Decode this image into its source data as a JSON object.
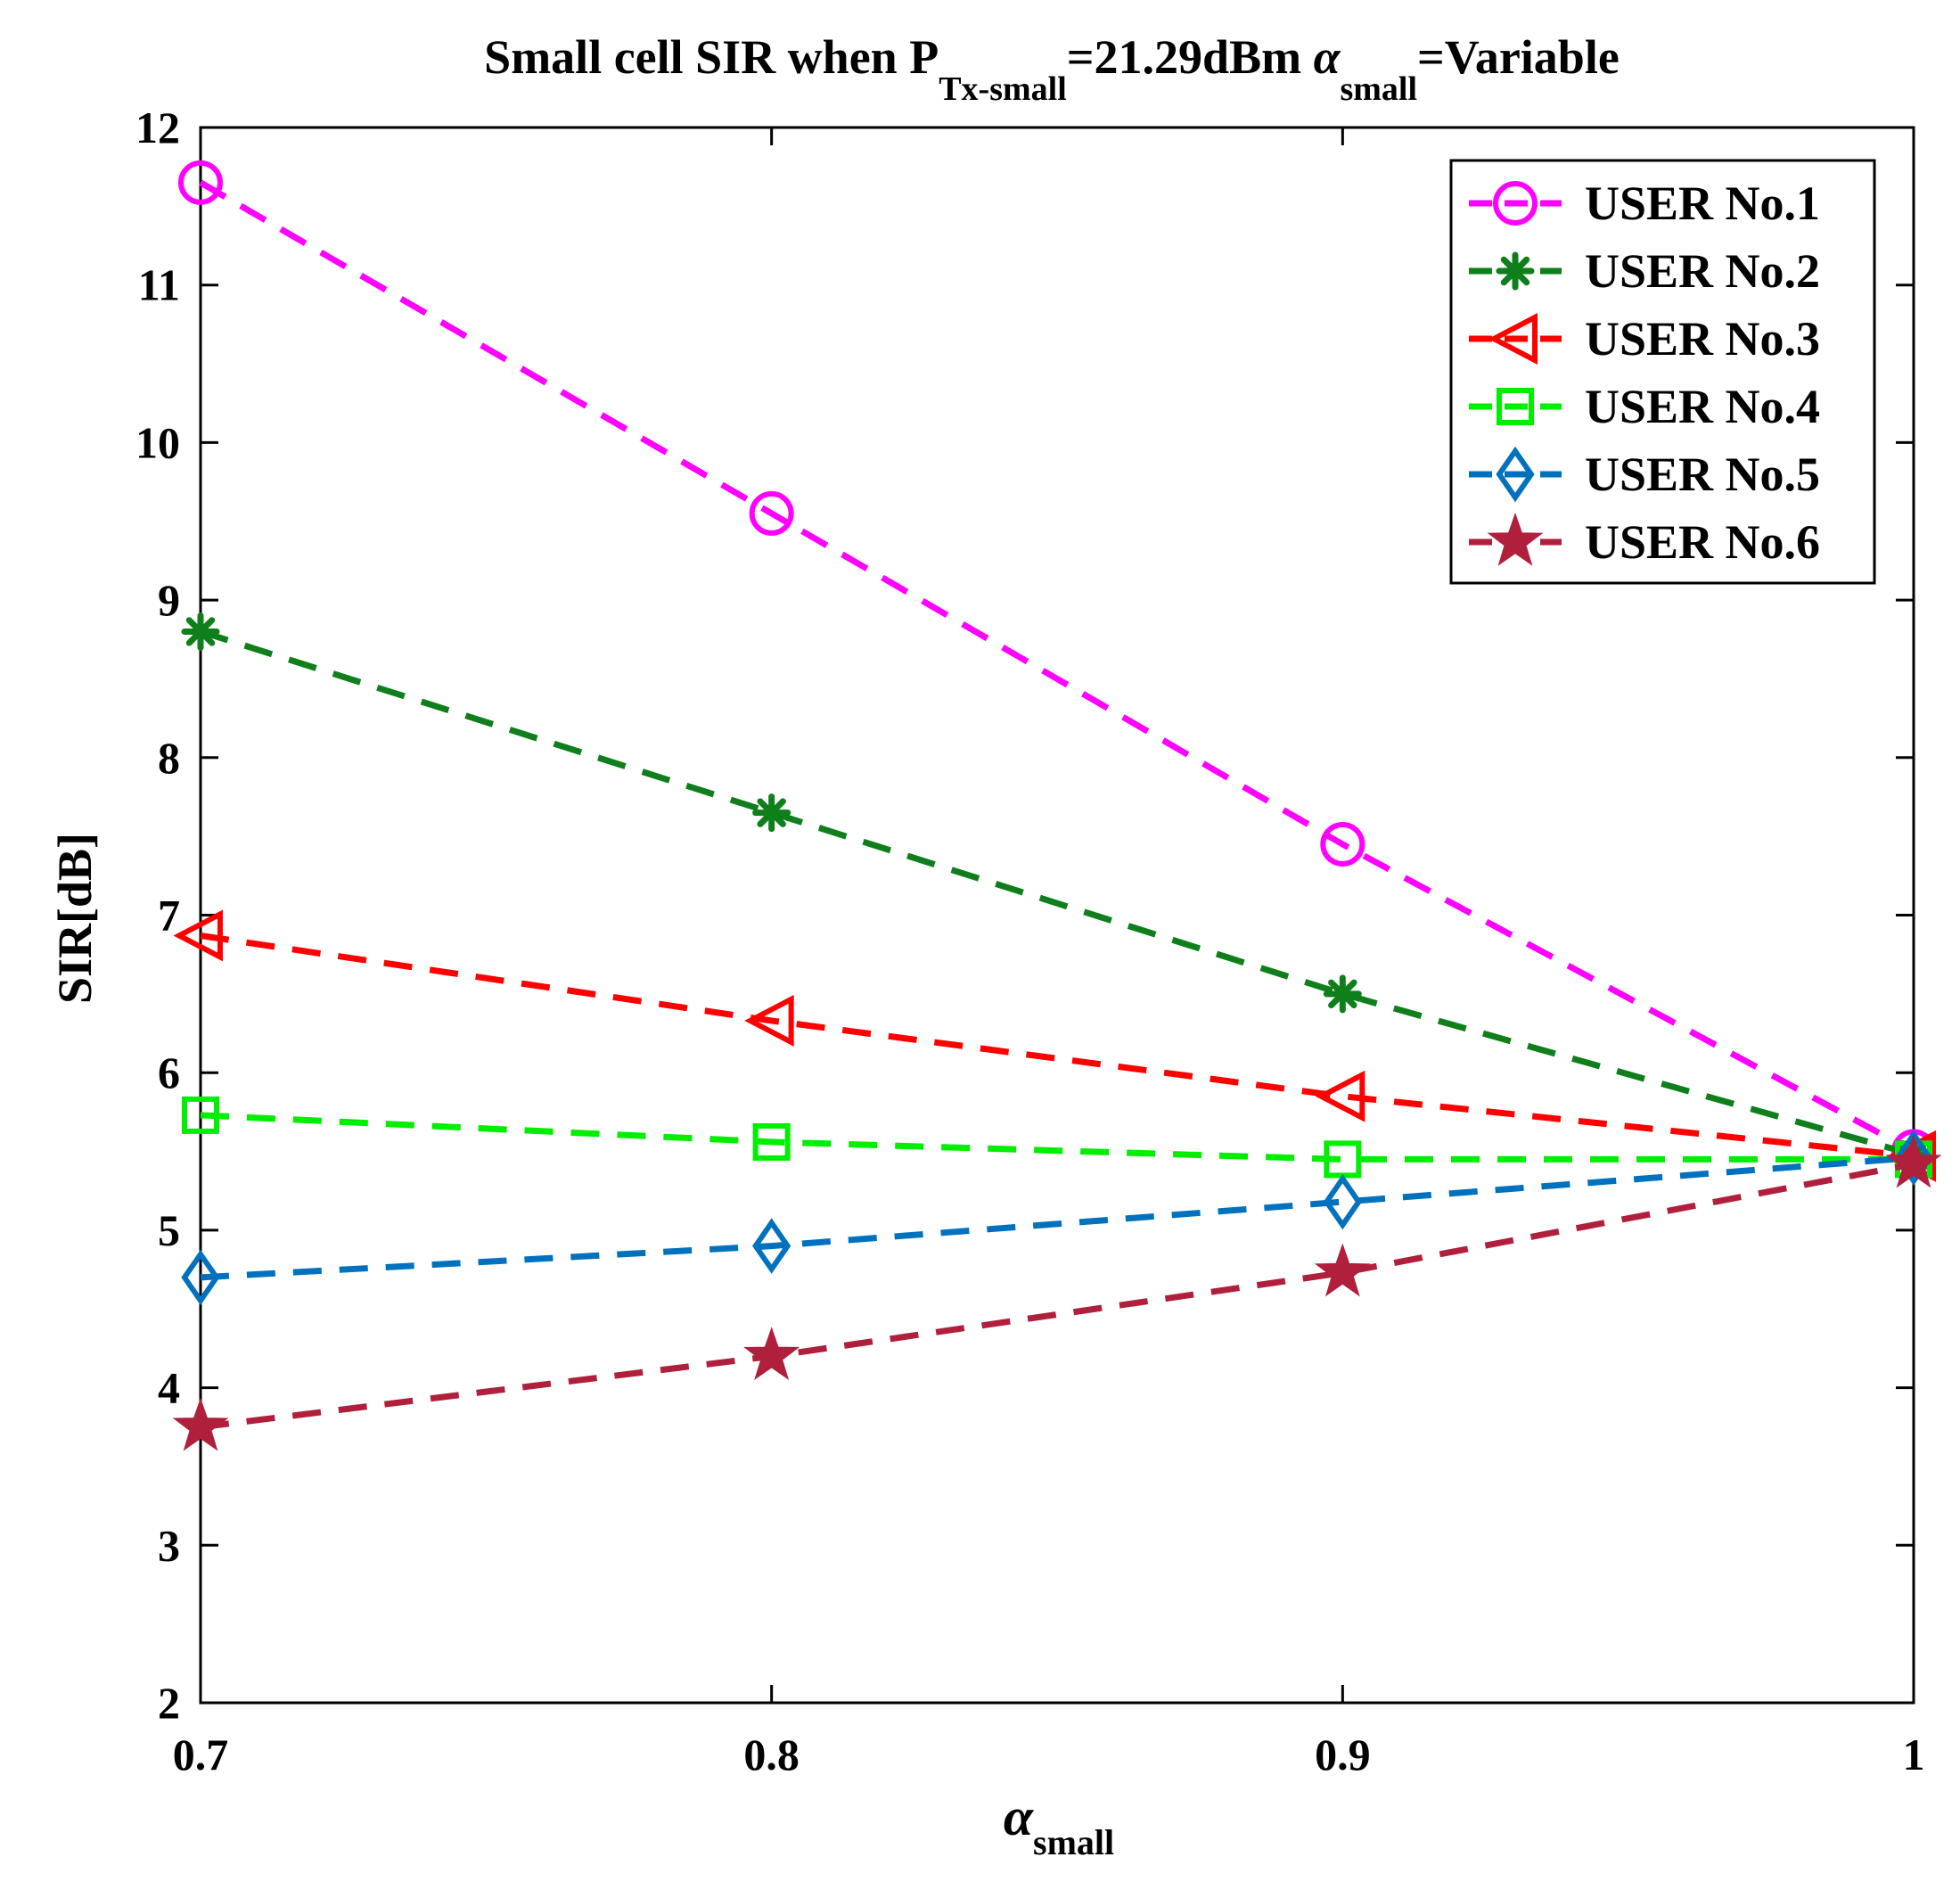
{
  "chart_data": {
    "type": "line",
    "title": {
      "prefix": "Small cell  SIR  when P",
      "sub1": "Tx-small",
      "mid": "=21.29dBm ",
      "alpha": "α",
      "sub2": "small",
      "suffix": "=Variable"
    },
    "xlabel": {
      "main": "α",
      "sub": "small"
    },
    "ylabel": "SIR[dB]",
    "xlim": [
      0.7,
      1.0
    ],
    "ylim": [
      2,
      12
    ],
    "x": [
      0.7,
      0.8,
      0.9,
      1.0
    ],
    "x_ticks": [
      {
        "value": 0.7,
        "label": "0.7"
      },
      {
        "value": 0.8,
        "label": "0.8"
      },
      {
        "value": 0.9,
        "label": "0.9"
      },
      {
        "value": 1.0,
        "label": "1"
      }
    ],
    "y_ticks": [
      {
        "value": 2,
        "label": "2"
      },
      {
        "value": 3,
        "label": "3"
      },
      {
        "value": 4,
        "label": "4"
      },
      {
        "value": 5,
        "label": "5"
      },
      {
        "value": 6,
        "label": "6"
      },
      {
        "value": 7,
        "label": "7"
      },
      {
        "value": 8,
        "label": "8"
      },
      {
        "value": 9,
        "label": "9"
      },
      {
        "value": 10,
        "label": "10"
      },
      {
        "value": 11,
        "label": "11"
      },
      {
        "value": 12,
        "label": "12"
      }
    ],
    "grid": false,
    "legend_position": "top-right",
    "series": [
      {
        "name": "USER No.1",
        "values": [
          11.65,
          9.55,
          7.45,
          5.5
        ],
        "color": "#ff00ff",
        "marker": "circle"
      },
      {
        "name": "USER No.2",
        "values": [
          8.8,
          7.65,
          6.5,
          5.48
        ],
        "color": "#0e7f1a",
        "marker": "asterisk"
      },
      {
        "name": "USER No.3",
        "values": [
          6.87,
          6.33,
          5.85,
          5.47
        ],
        "color": "#ff0000",
        "marker": "triangle-left"
      },
      {
        "name": "USER No.4",
        "values": [
          5.73,
          5.56,
          5.45,
          5.45
        ],
        "color": "#00ee00",
        "marker": "square"
      },
      {
        "name": "USER No.5",
        "values": [
          4.7,
          4.9,
          5.18,
          5.46
        ],
        "color": "#0072bd",
        "marker": "diamond"
      },
      {
        "name": "USER No.6",
        "values": [
          3.75,
          4.2,
          4.73,
          5.42
        ],
        "color": "#b01f3c",
        "marker": "star"
      }
    ]
  }
}
